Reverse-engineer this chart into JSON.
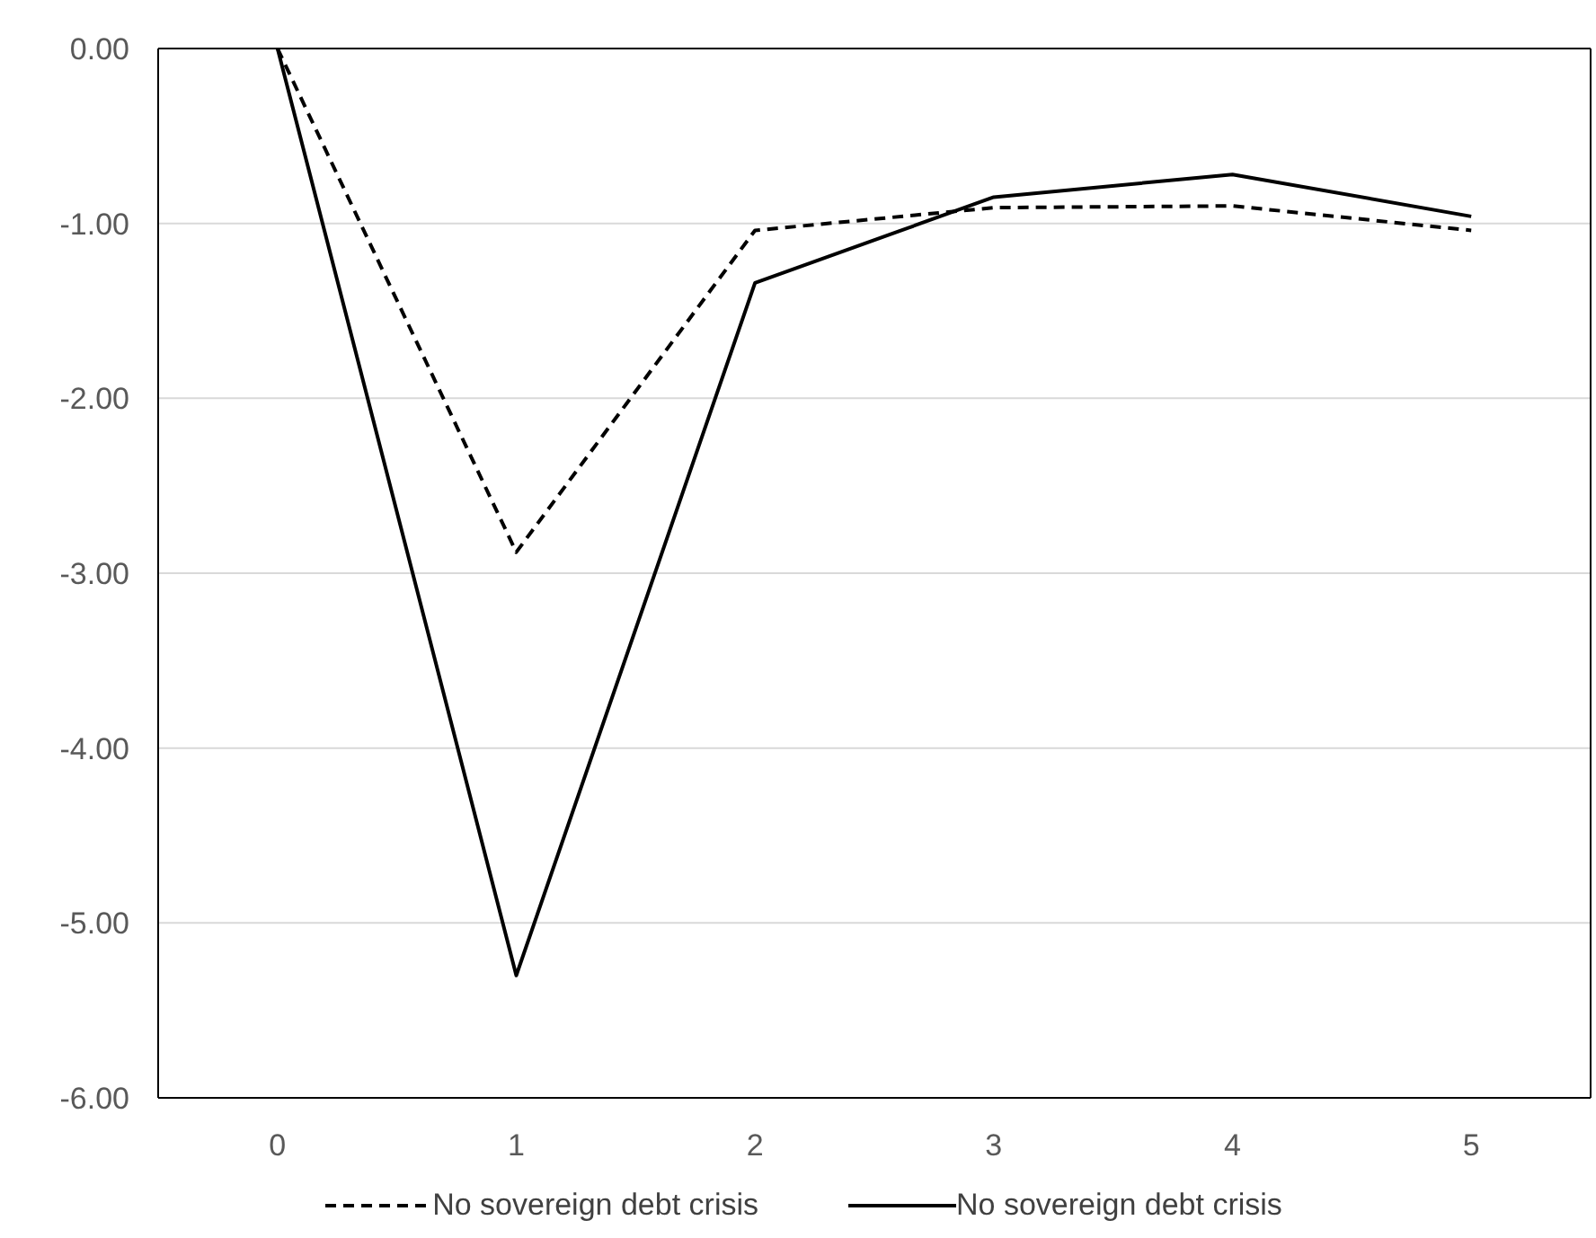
{
  "chart_data": {
    "type": "line",
    "categories": [
      "0",
      "1",
      "2",
      "3",
      "4",
      "5"
    ],
    "series": [
      {
        "name": "No sovereign debt crisis",
        "color": "#000000",
        "line_style": "dashed",
        "values": [
          0,
          -2.88,
          -1.04,
          -0.91,
          -0.9,
          -1.04
        ]
      },
      {
        "name": "No sovereign debt crisis",
        "color": "#000000",
        "line_style": "solid",
        "values": [
          0,
          -5.3,
          -1.34,
          -0.85,
          -0.72,
          -0.96
        ]
      }
    ],
    "ylim": [
      -6,
      0
    ],
    "yticks": [
      {
        "value": -6,
        "label": "-6.00"
      },
      {
        "value": -5,
        "label": "-5.00"
      },
      {
        "value": -4,
        "label": "-4.00"
      },
      {
        "value": -3,
        "label": "-3.00"
      },
      {
        "value": -2,
        "label": "-2.00"
      },
      {
        "value": -1,
        "label": "-1.00"
      },
      {
        "value": 0,
        "label": "0.00"
      }
    ],
    "grid": "y",
    "legend": "bottom",
    "marker": "none"
  }
}
